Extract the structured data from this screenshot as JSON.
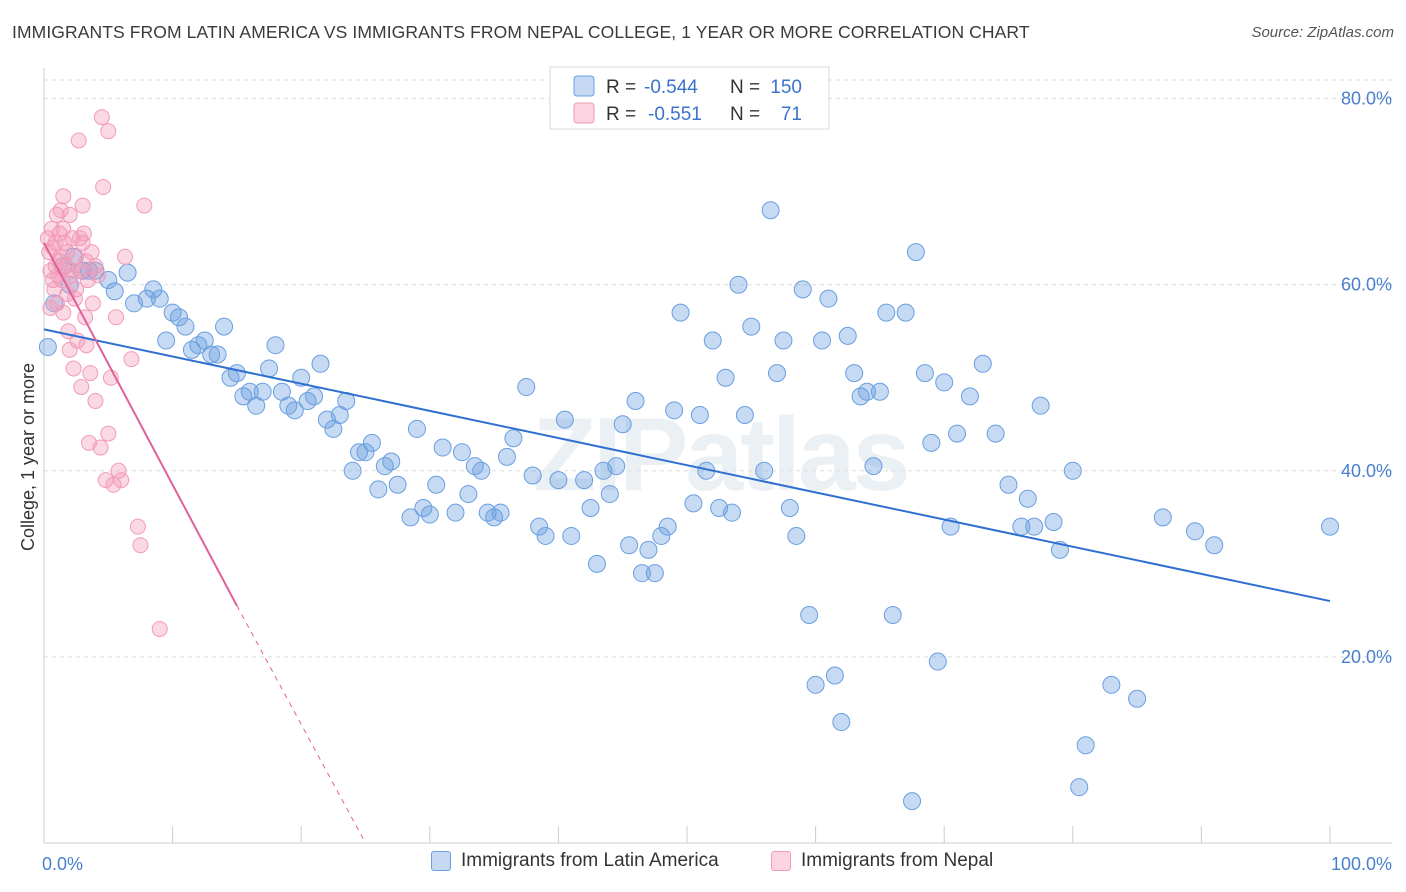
{
  "header": {
    "title": "IMMIGRANTS FROM LATIN AMERICA VS IMMIGRANTS FROM NEPAL COLLEGE, 1 YEAR OR MORE CORRELATION CHART",
    "source": "Source: ZipAtlas.com"
  },
  "watermark": "ZIPatlas",
  "colors": {
    "blue": "#6a9fe0",
    "blue_line": "#2f6fd0",
    "pink": "#f29ab8",
    "pink_line": "#e0609a",
    "tick_label": "#4a7fcf",
    "grid": "#dddddd"
  },
  "legend_top": [
    {
      "r_label": "R =",
      "r_value": "-0.544",
      "n_label": "N =",
      "n_value": "150"
    },
    {
      "r_label": "R =",
      "r_value": "-0.551",
      "n_label": "N =",
      "n_value": "71"
    }
  ],
  "legend_bottom": [
    {
      "label": "Immigrants from Latin America"
    },
    {
      "label": "Immigrants from Nepal"
    }
  ],
  "chart_data": {
    "type": "scatter",
    "xlabel": "",
    "ylabel": "College, 1 year or more",
    "xlim": [
      0,
      100
    ],
    "ylim": [
      0,
      82
    ],
    "x_tick_labels": [
      {
        "value": 0,
        "label": "0.0%"
      },
      {
        "value": 100,
        "label": "100.0%"
      }
    ],
    "y_tick_labels": [
      {
        "value": 20,
        "label": "20.0%"
      },
      {
        "value": 40,
        "label": "40.0%"
      },
      {
        "value": 60,
        "label": "60.0%"
      },
      {
        "value": 80,
        "label": "80.0%"
      }
    ],
    "grid": "horizontal dashed",
    "legend_placement": "top-center",
    "series": [
      {
        "name": "Immigrants from Latin America",
        "color": "#6a9fe0",
        "trend": {
          "x": [
            0,
            100
          ],
          "y": [
            55.2,
            26.0
          ]
        },
        "points": [
          [
            0.3,
            53.3
          ],
          [
            0.8,
            58.0
          ],
          [
            1.5,
            62.0
          ],
          [
            2.0,
            60.0
          ],
          [
            2.3,
            63.0
          ],
          [
            3.0,
            61.5
          ],
          [
            3.5,
            61.5
          ],
          [
            4.0,
            61.5
          ],
          [
            5.0,
            60.5
          ],
          [
            5.5,
            59.3
          ],
          [
            6.5,
            61.3
          ],
          [
            7.0,
            58.0
          ],
          [
            8.0,
            58.5
          ],
          [
            8.5,
            59.5
          ],
          [
            9.0,
            58.5
          ],
          [
            9.5,
            54.0
          ],
          [
            10.0,
            57.0
          ],
          [
            10.5,
            56.5
          ],
          [
            11.0,
            55.5
          ],
          [
            11.5,
            53.0
          ],
          [
            12.0,
            53.5
          ],
          [
            12.5,
            54.0
          ],
          [
            13.0,
            52.5
          ],
          [
            13.5,
            52.5
          ],
          [
            14.0,
            55.5
          ],
          [
            14.5,
            50.0
          ],
          [
            15.0,
            50.5
          ],
          [
            15.5,
            48.0
          ],
          [
            16.0,
            48.5
          ],
          [
            16.5,
            47.0
          ],
          [
            17.0,
            48.5
          ],
          [
            17.5,
            51.0
          ],
          [
            18.0,
            53.5
          ],
          [
            18.5,
            48.5
          ],
          [
            19.0,
            47.0
          ],
          [
            19.5,
            46.5
          ],
          [
            20.0,
            50.0
          ],
          [
            20.5,
            47.5
          ],
          [
            21.0,
            48.0
          ],
          [
            21.5,
            51.5
          ],
          [
            22.0,
            45.5
          ],
          [
            22.5,
            44.5
          ],
          [
            23.0,
            46.0
          ],
          [
            23.5,
            47.5
          ],
          [
            24.0,
            40.0
          ],
          [
            24.5,
            42.0
          ],
          [
            25.0,
            42.0
          ],
          [
            25.5,
            43.0
          ],
          [
            26.0,
            38.0
          ],
          [
            26.5,
            40.5
          ],
          [
            27.0,
            41.0
          ],
          [
            27.5,
            38.5
          ],
          [
            28.5,
            35.0
          ],
          [
            29.0,
            44.5
          ],
          [
            29.5,
            36.0
          ],
          [
            30.0,
            35.3
          ],
          [
            30.5,
            38.5
          ],
          [
            31.0,
            42.5
          ],
          [
            32.0,
            35.5
          ],
          [
            32.5,
            42.0
          ],
          [
            33.0,
            37.5
          ],
          [
            33.5,
            40.5
          ],
          [
            34.0,
            40.0
          ],
          [
            34.5,
            35.5
          ],
          [
            35.0,
            35.0
          ],
          [
            35.5,
            35.5
          ],
          [
            36.0,
            41.5
          ],
          [
            36.5,
            43.5
          ],
          [
            37.5,
            49.0
          ],
          [
            38.0,
            39.5
          ],
          [
            38.5,
            34.0
          ],
          [
            39.0,
            33.0
          ],
          [
            40.0,
            39.0
          ],
          [
            40.5,
            45.5
          ],
          [
            41.0,
            33.0
          ],
          [
            42.0,
            39.0
          ],
          [
            42.5,
            36.0
          ],
          [
            43.0,
            30.0
          ],
          [
            43.5,
            40.0
          ],
          [
            44.0,
            37.5
          ],
          [
            44.5,
            40.5
          ],
          [
            45.0,
            45.0
          ],
          [
            45.5,
            32.0
          ],
          [
            46.0,
            47.5
          ],
          [
            46.5,
            29.0
          ],
          [
            47.0,
            31.5
          ],
          [
            47.5,
            29.0
          ],
          [
            48.0,
            33.0
          ],
          [
            48.5,
            34.0
          ],
          [
            49.0,
            46.5
          ],
          [
            49.5,
            57.0
          ],
          [
            50.5,
            36.5
          ],
          [
            51.0,
            46.0
          ],
          [
            51.5,
            40.0
          ],
          [
            52.0,
            54.0
          ],
          [
            52.5,
            36.0
          ],
          [
            53.0,
            50.0
          ],
          [
            53.5,
            35.5
          ],
          [
            54.0,
            60.0
          ],
          [
            54.5,
            46.0
          ],
          [
            55.0,
            55.5
          ],
          [
            56.0,
            40.0
          ],
          [
            56.5,
            68.0
          ],
          [
            57.0,
            50.5
          ],
          [
            57.5,
            54.0
          ],
          [
            58.0,
            36.0
          ],
          [
            58.5,
            33.0
          ],
          [
            59.0,
            59.5
          ],
          [
            59.5,
            24.5
          ],
          [
            60.0,
            17.0
          ],
          [
            60.5,
            54.0
          ],
          [
            61.0,
            58.5
          ],
          [
            61.5,
            18.0
          ],
          [
            62.0,
            13.0
          ],
          [
            62.5,
            54.5
          ],
          [
            63.0,
            50.5
          ],
          [
            63.5,
            48.0
          ],
          [
            64.0,
            48.5
          ],
          [
            64.5,
            40.5
          ],
          [
            65.0,
            48.5
          ],
          [
            65.5,
            57.0
          ],
          [
            66.0,
            24.5
          ],
          [
            67.0,
            57.0
          ],
          [
            67.5,
            4.5
          ],
          [
            67.8,
            63.5
          ],
          [
            68.5,
            50.5
          ],
          [
            69.0,
            43.0
          ],
          [
            69.5,
            19.5
          ],
          [
            70.0,
            49.5
          ],
          [
            70.5,
            34.0
          ],
          [
            71.0,
            44.0
          ],
          [
            72.0,
            48.0
          ],
          [
            73.0,
            51.5
          ],
          [
            74.0,
            44.0
          ],
          [
            75.0,
            38.5
          ],
          [
            76.0,
            34.0
          ],
          [
            76.5,
            37.0
          ],
          [
            77.0,
            34.0
          ],
          [
            77.5,
            47.0
          ],
          [
            78.5,
            34.5
          ],
          [
            79.0,
            31.5
          ],
          [
            80.0,
            40.0
          ],
          [
            80.5,
            6.0
          ],
          [
            81.0,
            10.5
          ],
          [
            83.0,
            17.0
          ],
          [
            85.0,
            15.5
          ],
          [
            87.0,
            35.0
          ],
          [
            89.5,
            33.5
          ],
          [
            91.0,
            32.0
          ],
          [
            100.0,
            34.0
          ]
        ]
      },
      {
        "name": "Immigrants from Nepal",
        "color": "#f29ab8",
        "trend": {
          "x": [
            0,
            15
          ],
          "y": [
            64.5,
            25.5
          ],
          "dashed_to": {
            "x": 25,
            "y": 0
          }
        },
        "points": [
          [
            0.3,
            65.0
          ],
          [
            0.4,
            63.5
          ],
          [
            0.5,
            61.5
          ],
          [
            0.6,
            66.0
          ],
          [
            0.7,
            64.0
          ],
          [
            0.8,
            59.5
          ],
          [
            0.9,
            62.0
          ],
          [
            1.0,
            67.5
          ],
          [
            1.0,
            58.0
          ],
          [
            1.1,
            61.0
          ],
          [
            1.2,
            65.5
          ],
          [
            1.3,
            63.0
          ],
          [
            1.4,
            60.5
          ],
          [
            1.5,
            69.5
          ],
          [
            1.5,
            57.0
          ],
          [
            1.6,
            64.5
          ],
          [
            1.7,
            62.0
          ],
          [
            1.8,
            59.0
          ],
          [
            1.9,
            55.0
          ],
          [
            2.0,
            67.5
          ],
          [
            2.0,
            53.0
          ],
          [
            2.1,
            61.0
          ],
          [
            2.2,
            65.0
          ],
          [
            2.3,
            51.0
          ],
          [
            2.4,
            58.5
          ],
          [
            2.5,
            63.0
          ],
          [
            2.6,
            54.0
          ],
          [
            2.7,
            75.5
          ],
          [
            2.8,
            61.5
          ],
          [
            2.9,
            49.0
          ],
          [
            3.0,
            68.5
          ],
          [
            3.1,
            65.5
          ],
          [
            3.2,
            56.5
          ],
          [
            3.3,
            53.5
          ],
          [
            3.4,
            60.5
          ],
          [
            3.5,
            43.0
          ],
          [
            3.6,
            50.5
          ],
          [
            3.8,
            58.0
          ],
          [
            4.0,
            47.5
          ],
          [
            4.2,
            61.0
          ],
          [
            4.4,
            42.5
          ],
          [
            4.5,
            78.0
          ],
          [
            4.6,
            70.5
          ],
          [
            4.8,
            39.0
          ],
          [
            5.0,
            76.5
          ],
          [
            5.0,
            44.0
          ],
          [
            5.2,
            50.0
          ],
          [
            5.4,
            38.5
          ],
          [
            5.6,
            56.5
          ],
          [
            5.8,
            40.0
          ],
          [
            6.0,
            39.0
          ],
          [
            6.3,
            63.0
          ],
          [
            6.8,
            52.0
          ],
          [
            7.3,
            34.0
          ],
          [
            7.5,
            32.0
          ],
          [
            7.8,
            68.5
          ],
          [
            9.0,
            23.0
          ],
          [
            1.2,
            62.5
          ],
          [
            0.9,
            64.5
          ],
          [
            1.5,
            66.0
          ],
          [
            2.5,
            59.5
          ],
          [
            3.7,
            63.5
          ],
          [
            0.5,
            57.5
          ],
          [
            1.8,
            63.5
          ],
          [
            2.2,
            61.5
          ],
          [
            3.3,
            62.5
          ],
          [
            0.7,
            60.5
          ],
          [
            4.0,
            62.0
          ],
          [
            2.8,
            65.0
          ],
          [
            3.0,
            64.5
          ],
          [
            1.3,
            68.0
          ]
        ]
      }
    ]
  }
}
